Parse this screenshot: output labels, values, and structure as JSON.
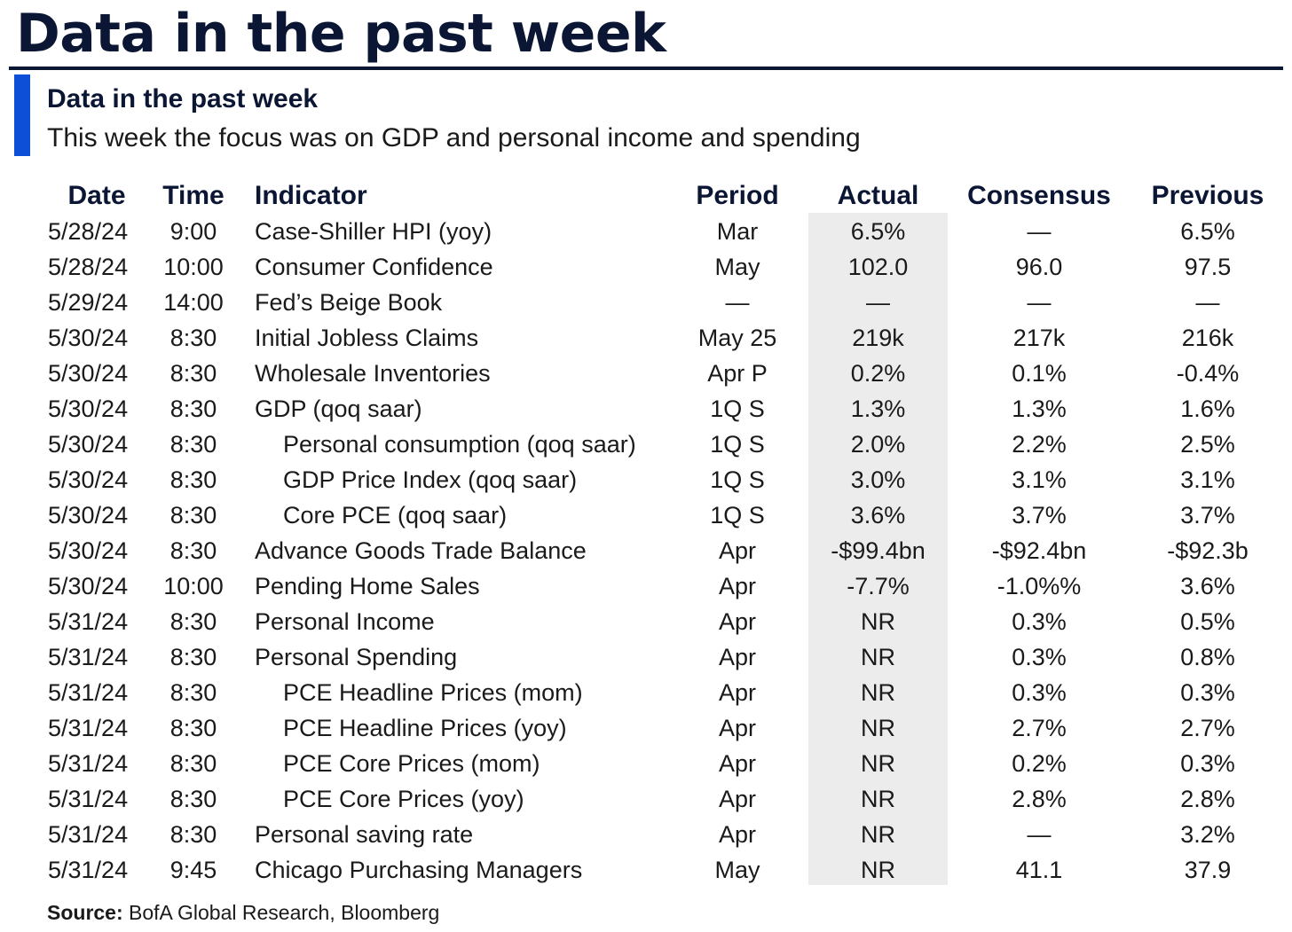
{
  "page_title": "Data in the past week",
  "figure": {
    "title": "Data in the past week",
    "subtitle": "This week the focus was on GDP and personal income and spending"
  },
  "colors": {
    "navy": "#0a1633",
    "accent_blue": "#0d4fd6",
    "actual_highlight": "#ececec"
  },
  "table": {
    "headers": {
      "date": "Date",
      "time": "Time",
      "indicator": "Indicator",
      "period": "Period",
      "actual": "Actual",
      "consensus": "Consensus",
      "previous": "Previous"
    },
    "rows": [
      {
        "date": "5/28/24",
        "time": "9:00",
        "indicator": "Case-Shiller HPI (yoy)",
        "sub": false,
        "period": "Mar",
        "actual": "6.5%",
        "consensus": "—",
        "previous": "6.5%"
      },
      {
        "date": "5/28/24",
        "time": "10:00",
        "indicator": "Consumer Confidence",
        "sub": false,
        "period": "May",
        "actual": "102.0",
        "consensus": "96.0",
        "previous": "97.5"
      },
      {
        "date": "5/29/24",
        "time": "14:00",
        "indicator": "Fed’s Beige Book",
        "sub": false,
        "period": "—",
        "actual": "—",
        "consensus": "—",
        "previous": "—"
      },
      {
        "date": "5/30/24",
        "time": "8:30",
        "indicator": "Initial Jobless Claims",
        "sub": false,
        "period": "May 25",
        "actual": "219k",
        "consensus": "217k",
        "previous": "216k"
      },
      {
        "date": "5/30/24",
        "time": "8:30",
        "indicator": "Wholesale Inventories",
        "sub": false,
        "period": "Apr P",
        "actual": "0.2%",
        "consensus": "0.1%",
        "previous": "-0.4%"
      },
      {
        "date": "5/30/24",
        "time": "8:30",
        "indicator": "GDP (qoq saar)",
        "sub": false,
        "period": "1Q S",
        "actual": "1.3%",
        "consensus": "1.3%",
        "previous": "1.6%"
      },
      {
        "date": "5/30/24",
        "time": "8:30",
        "indicator": "Personal consumption (qoq saar)",
        "sub": true,
        "period": "1Q S",
        "actual": "2.0%",
        "consensus": "2.2%",
        "previous": "2.5%"
      },
      {
        "date": "5/30/24",
        "time": "8:30",
        "indicator": "GDP Price Index (qoq saar)",
        "sub": true,
        "period": "1Q S",
        "actual": "3.0%",
        "consensus": "3.1%",
        "previous": "3.1%"
      },
      {
        "date": "5/30/24",
        "time": "8:30",
        "indicator": "Core PCE (qoq saar)",
        "sub": true,
        "period": "1Q S",
        "actual": "3.6%",
        "consensus": "3.7%",
        "previous": "3.7%"
      },
      {
        "date": "5/30/24",
        "time": "8:30",
        "indicator": "Advance Goods Trade Balance",
        "sub": false,
        "period": "Apr",
        "actual": "-$99.4bn",
        "consensus": "-$92.4bn",
        "previous": "-$92.3b"
      },
      {
        "date": "5/30/24",
        "time": "10:00",
        "indicator": "Pending Home Sales",
        "sub": false,
        "period": "Apr",
        "actual": "-7.7%",
        "consensus": "-1.0%%",
        "previous": "3.6%"
      },
      {
        "date": "5/31/24",
        "time": "8:30",
        "indicator": "Personal Income",
        "sub": false,
        "period": "Apr",
        "actual": "NR",
        "consensus": "0.3%",
        "previous": "0.5%"
      },
      {
        "date": "5/31/24",
        "time": "8:30",
        "indicator": "Personal Spending",
        "sub": false,
        "period": "Apr",
        "actual": "NR",
        "consensus": "0.3%",
        "previous": "0.8%"
      },
      {
        "date": "5/31/24",
        "time": "8:30",
        "indicator": "PCE Headline Prices (mom)",
        "sub": true,
        "period": "Apr",
        "actual": "NR",
        "consensus": "0.3%",
        "previous": "0.3%"
      },
      {
        "date": "5/31/24",
        "time": "8:30",
        "indicator": "PCE Headline Prices (yoy)",
        "sub": true,
        "period": "Apr",
        "actual": "NR",
        "consensus": "2.7%",
        "previous": "2.7%"
      },
      {
        "date": "5/31/24",
        "time": "8:30",
        "indicator": "PCE Core Prices (mom)",
        "sub": true,
        "period": "Apr",
        "actual": "NR",
        "consensus": "0.2%",
        "previous": "0.3%"
      },
      {
        "date": "5/31/24",
        "time": "8:30",
        "indicator": "PCE Core Prices (yoy)",
        "sub": true,
        "period": "Apr",
        "actual": "NR",
        "consensus": "2.8%",
        "previous": "2.8%"
      },
      {
        "date": "5/31/24",
        "time": "8:30",
        "indicator": "Personal saving rate",
        "sub": false,
        "period": "Apr",
        "actual": "NR",
        "consensus": "—",
        "previous": "3.2%"
      },
      {
        "date": "5/31/24",
        "time": "9:45",
        "indicator": "Chicago Purchasing Managers",
        "sub": false,
        "period": "May",
        "actual": "NR",
        "consensus": "41.1",
        "previous": "37.9"
      }
    ]
  },
  "source": {
    "label": "Source:",
    "text": " BofA Global Research, Bloomberg"
  }
}
